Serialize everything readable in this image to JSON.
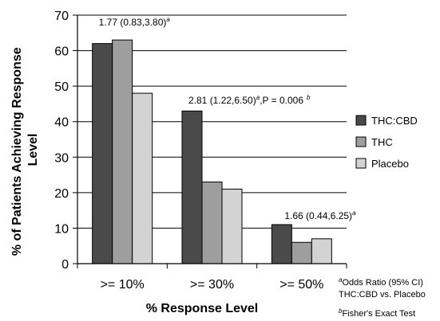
{
  "chart_data": {
    "type": "bar",
    "categories": [
      ">= 10%",
      ">= 30%",
      ">= 50%"
    ],
    "series": [
      {
        "name": "THC:CBD",
        "values": [
          62,
          43,
          11
        ],
        "color": "#4a4a4a"
      },
      {
        "name": "THC",
        "values": [
          63,
          23,
          6
        ],
        "color": "#9e9e9e"
      },
      {
        "name": "Placebo",
        "values": [
          48,
          21,
          7
        ],
        "color": "#d3d3d3"
      }
    ],
    "title": "",
    "xlabel": "% Response Level",
    "ylabel": "% of Patients Achieving Response Level",
    "ylim": [
      0,
      70
    ],
    "yticks": [
      0,
      10,
      20,
      30,
      40,
      50,
      60,
      70
    ],
    "grid": true,
    "legend_placement": "right",
    "annotations": [
      {
        "category": ">= 10%",
        "value": 68,
        "text": "1.77 (0.83,3.80)",
        "sup": "a",
        "tail": ""
      },
      {
        "category": ">= 30%",
        "value": 46,
        "text": "2.81 (1.22,6.50)",
        "sup": "a",
        "tail": ",P = 0.006",
        "sup2": "b"
      },
      {
        "category": ">= 50%",
        "value": 13.5,
        "text": "1.66 (0.44,6.25)",
        "sup": "a",
        "tail": ""
      }
    ]
  },
  "footnotes": {
    "a_marker": "a",
    "a_line1": "Odds Ratio (95% CI)",
    "a_line2": "THC:CBD vs. Placebo",
    "b_marker": "b",
    "b_line1": "Fisher's Exact Test"
  }
}
